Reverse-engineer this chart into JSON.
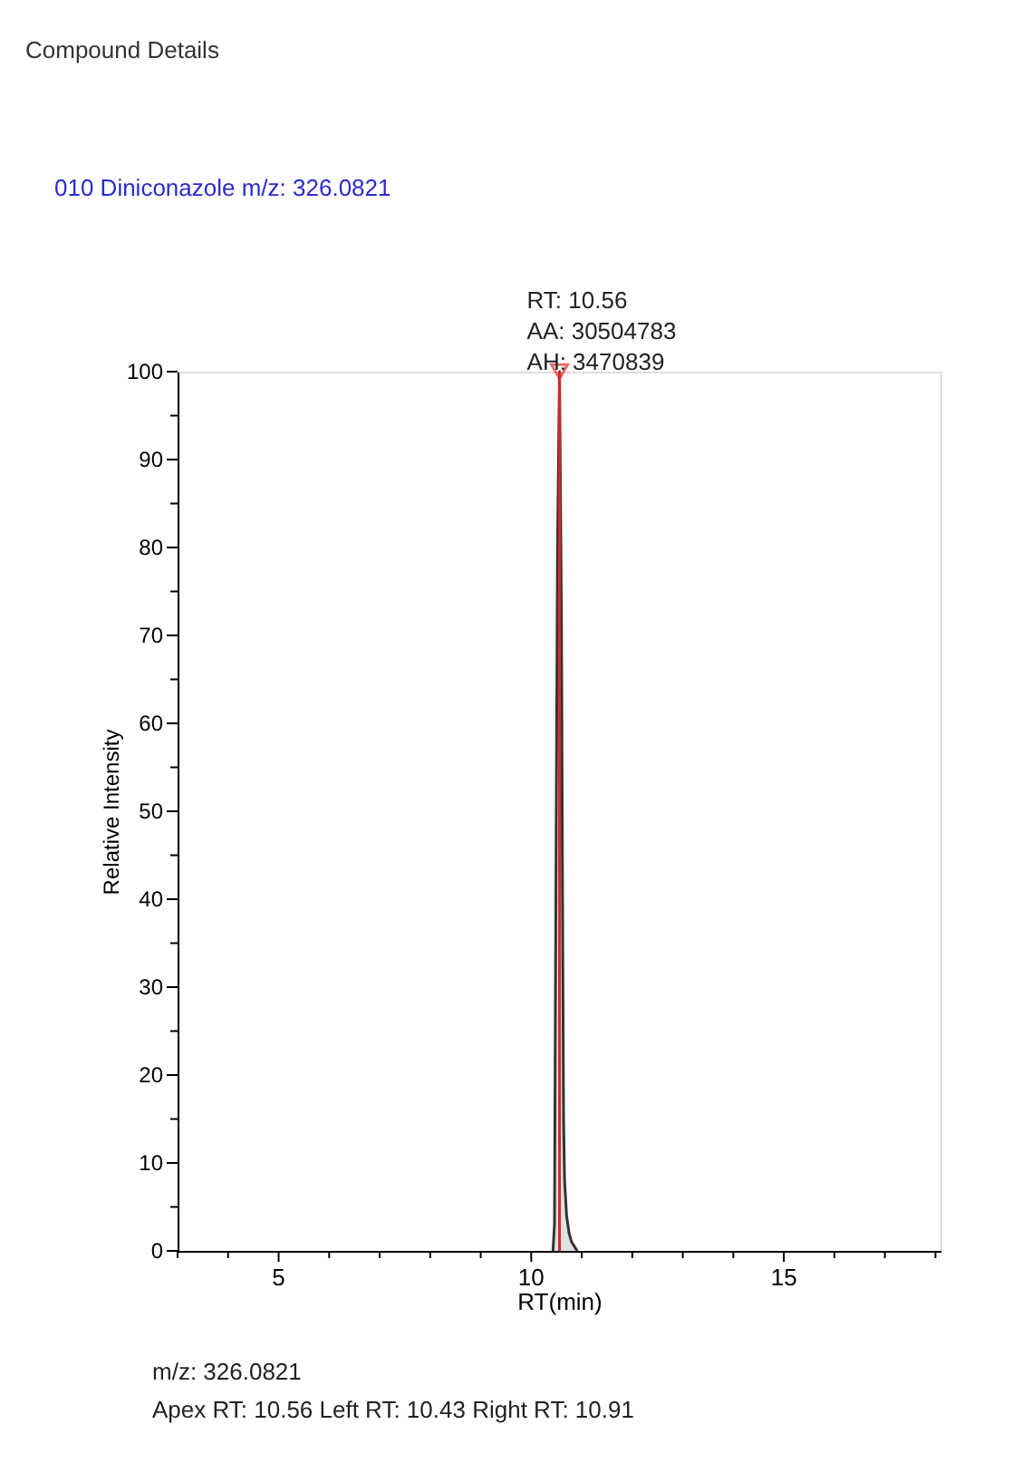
{
  "chart_data": {
    "type": "area",
    "title": "010  Diniconazole  m/z: 326.0821",
    "xlabel": "RT(min)",
    "ylabel": "Relative Intensity",
    "xlim": [
      3,
      18.1
    ],
    "xticks": [
      {
        "value": 3,
        "label": null
      },
      {
        "value": 4,
        "label": null
      },
      5,
      {
        "value": 6,
        "label": null
      },
      {
        "value": 7,
        "label": null
      },
      {
        "value": 8,
        "label": null
      },
      {
        "value": 9,
        "label": null
      },
      10,
      {
        "value": 11,
        "label": null
      },
      {
        "value": 12,
        "label": null
      },
      {
        "value": 13,
        "label": null
      },
      {
        "value": 14,
        "label": null
      },
      15,
      {
        "value": 16,
        "label": null
      },
      {
        "value": 17,
        "label": null
      },
      {
        "value": 18,
        "label": null
      }
    ],
    "ylim": [
      0,
      100
    ],
    "yticks": [
      0,
      {
        "value": 5,
        "label": null
      },
      10,
      {
        "value": 15,
        "label": null
      },
      20,
      {
        "value": 25,
        "label": null
      },
      30,
      {
        "value": 35,
        "label": null
      },
      40,
      {
        "value": 45,
        "label": null
      },
      50,
      {
        "value": 55,
        "label": null
      },
      60,
      {
        "value": 65,
        "label": null
      },
      70,
      {
        "value": 75,
        "label": null
      },
      80,
      {
        "value": 85,
        "label": null
      },
      90,
      {
        "value": 95,
        "label": null
      },
      100
    ],
    "series": [
      {
        "color": "#333333",
        "x": [
          10.43,
          10.46,
          10.48,
          10.52,
          10.56,
          10.6,
          10.62,
          10.64,
          10.66,
          10.7,
          10.75,
          10.8,
          10.91
        ],
        "values": [
          0,
          3,
          30,
          80,
          100,
          70,
          40,
          15,
          8,
          4,
          2,
          1,
          0
        ]
      },
      {
        "type": "scatter",
        "marker": "triangle",
        "color": "#e03030",
        "x": [
          10.56
        ],
        "values": [
          100
        ]
      }
    ],
    "ref_lines": [
      {
        "axis": "x",
        "value": 10.56,
        "color": "#d62728"
      }
    ],
    "annotations": [
      {
        "text": "RT: 10.56\nAA: 30504783\nAH: 3470839",
        "x": 10.56,
        "y": 100
      },
      "Compound Details",
      "m/z: 326.0821",
      "Apex RT:  10.56     Left RT:  10.43     Right RT:  10.91"
    ],
    "grid": false
  }
}
